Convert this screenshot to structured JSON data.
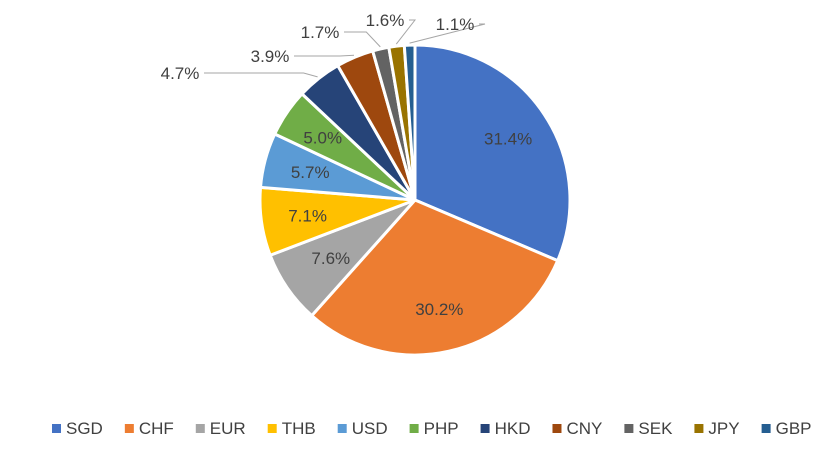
{
  "chart_data": {
    "type": "pie",
    "title": "",
    "categories": [
      "SGD",
      "CHF",
      "EUR",
      "THB",
      "USD",
      "PHP",
      "HKD",
      "CNY",
      "SEK",
      "JPY",
      "GBP"
    ],
    "values": [
      31.4,
      30.2,
      7.6,
      7.1,
      5.7,
      5.0,
      4.7,
      3.9,
      1.7,
      1.6,
      1.1
    ],
    "labels": [
      "31.4%",
      "30.2%",
      "7.6%",
      "7.1%",
      "5.7%",
      "5.0%",
      "4.7%",
      "3.9%",
      "1.7%",
      "1.6%",
      "1.1%"
    ],
    "colors": [
      "#4472C4",
      "#ED7D31",
      "#A5A5A5",
      "#FFC000",
      "#5B9BD5",
      "#70AD47",
      "#264478",
      "#9E480E",
      "#636363",
      "#997300",
      "#255E91"
    ],
    "legend_position": "bottom"
  }
}
